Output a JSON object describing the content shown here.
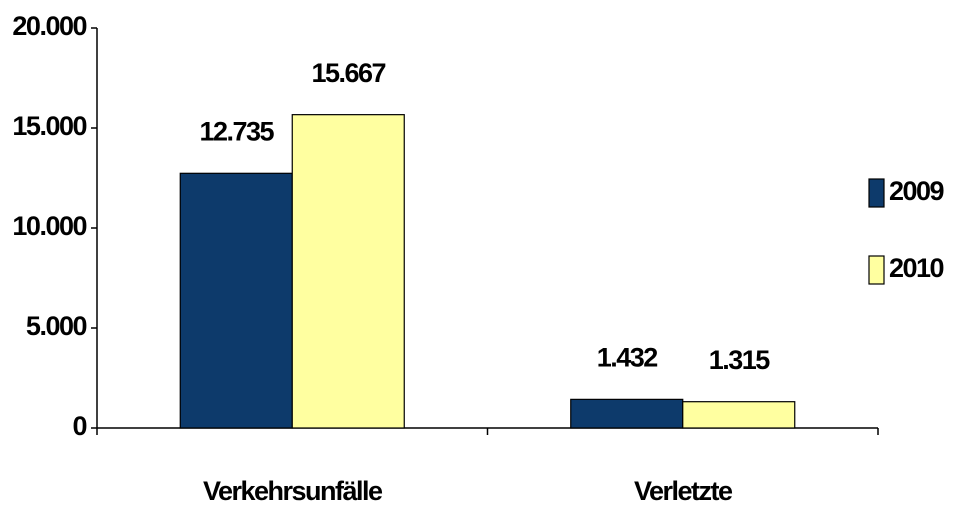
{
  "chart_data": {
    "type": "bar",
    "categories": [
      "Verkehrsunfälle",
      "Verletzte"
    ],
    "series": [
      {
        "name": "2009",
        "color": "#0d3a6b",
        "values": [
          12735,
          1432
        ],
        "value_labels": [
          "12.735",
          "1.432"
        ]
      },
      {
        "name": "2010",
        "color": "#ffffa0",
        "values": [
          15667,
          1315
        ],
        "value_labels": [
          "15.667",
          "1.315"
        ]
      }
    ],
    "ylim": [
      0,
      20000
    ],
    "yticks": [
      0,
      {
        "value": 5000,
        "label": "5.000"
      },
      {
        "value": 10000,
        "label": "10.000"
      },
      {
        "value": 15000,
        "label": "15.000"
      },
      {
        "value": 20000,
        "label": "20.000"
      }
    ],
    "legend": "right"
  }
}
